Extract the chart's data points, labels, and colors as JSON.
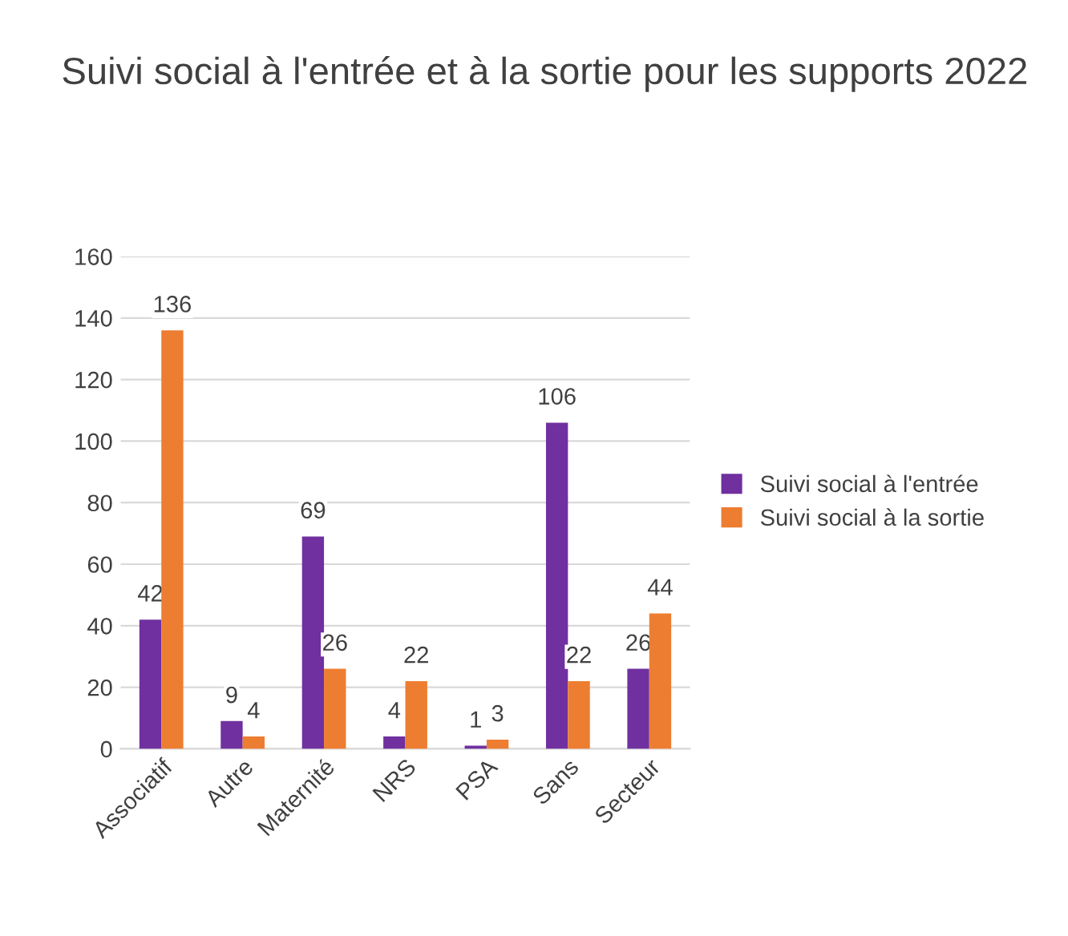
{
  "chart_data": {
    "type": "bar",
    "title": "Suivi social à l'entrée et à la sortie pour les supports 2022",
    "categories": [
      "Associatif",
      "Autre",
      "Maternité",
      "NRS",
      "PSA",
      "Sans",
      "Secteur"
    ],
    "series": [
      {
        "name": "Suivi social à l'entrée",
        "color": "#7030a0",
        "values": [
          42,
          9,
          69,
          4,
          1,
          106,
          26
        ]
      },
      {
        "name": "Suivi social à la sortie",
        "color": "#ed7d31",
        "values": [
          136,
          4,
          26,
          22,
          3,
          22,
          44
        ]
      }
    ],
    "ylim": [
      0,
      160
    ],
    "yticks": [
      0,
      20,
      40,
      60,
      80,
      100,
      120,
      140,
      160
    ],
    "grid": "y",
    "legend": "right",
    "data_labels": true
  }
}
